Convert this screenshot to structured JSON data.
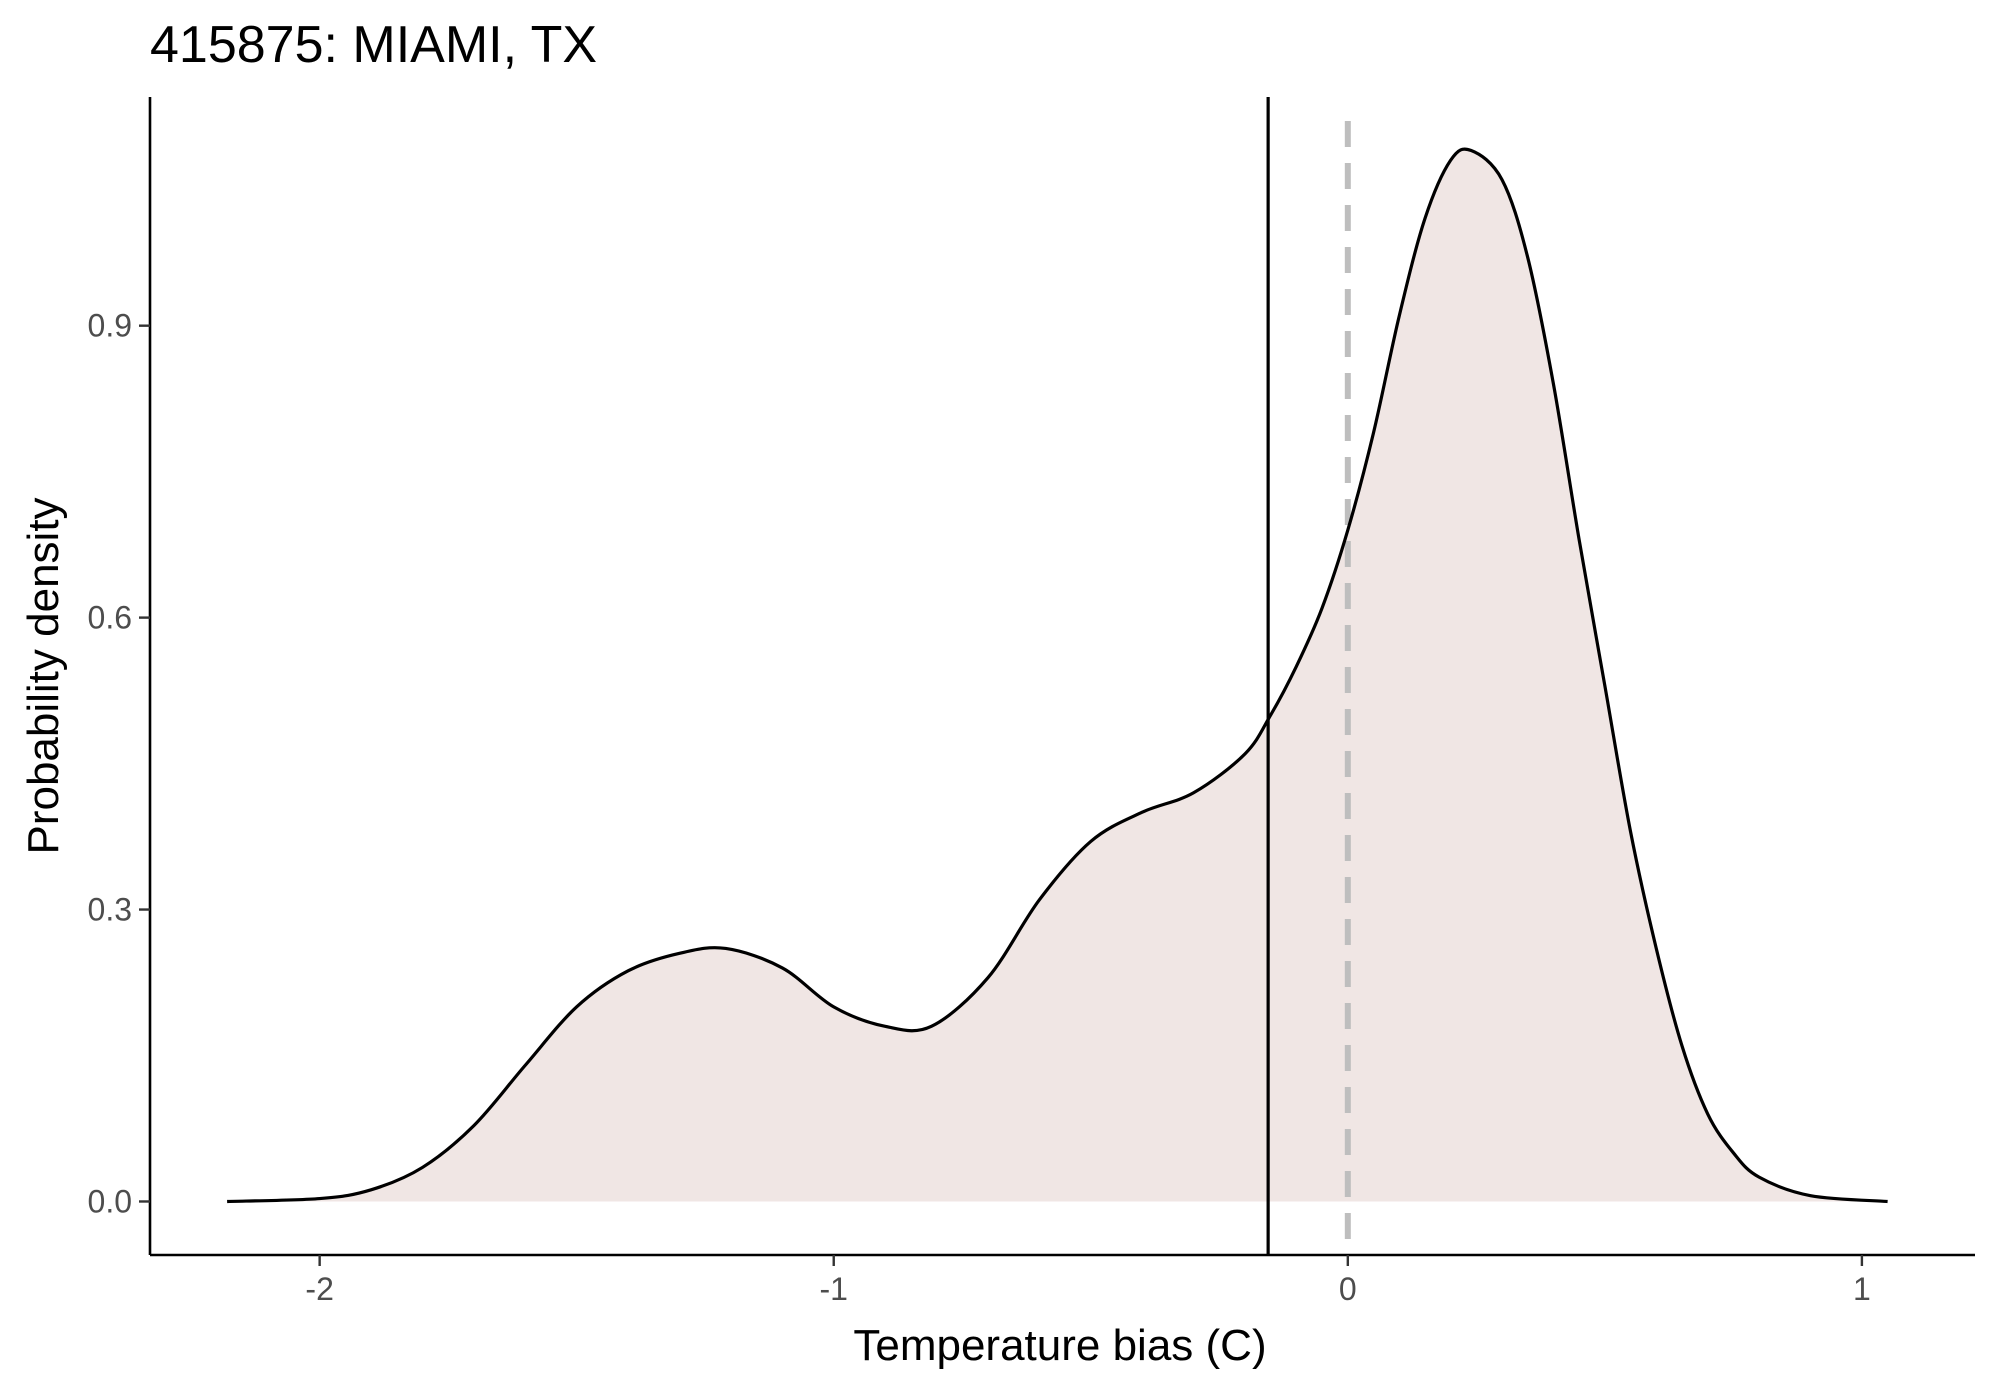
{
  "chart_data": {
    "type": "area",
    "title": "415875: MIAMI, TX",
    "xlabel": "Temperature bias (C)",
    "ylabel": "Probability density",
    "xlim": [
      -2.33,
      1.22
    ],
    "ylim": [
      -0.055,
      1.135
    ],
    "x_ticks": [
      -2,
      -1,
      0,
      1
    ],
    "x_tick_labels": [
      "-2",
      "-1",
      "0",
      "1"
    ],
    "y_ticks": [
      0.0,
      0.3,
      0.6,
      0.9
    ],
    "y_tick_labels": [
      "0.0",
      "0.3",
      "0.6",
      "0.9"
    ],
    "grid": false,
    "legend": "none",
    "fill_color": "#f0e6e4",
    "line_color": "#000000",
    "series": [
      {
        "x": [
          -2.18,
          -2.0,
          -1.9,
          -1.8,
          -1.7,
          -1.6,
          -1.5,
          -1.4,
          -1.3,
          -1.21,
          -1.1,
          -1.0,
          -0.9,
          -0.81,
          -0.7,
          -0.6,
          -0.5,
          -0.4,
          -0.3,
          -0.2,
          -0.15,
          -0.1,
          -0.05,
          0.0,
          0.05,
          0.1,
          0.15,
          0.2,
          0.24,
          0.3,
          0.35,
          0.4,
          0.45,
          0.5,
          0.55,
          0.6,
          0.65,
          0.7,
          0.75,
          0.8,
          0.9,
          1.05
        ],
        "y": [
          0.0,
          0.003,
          0.012,
          0.035,
          0.078,
          0.14,
          0.2,
          0.237,
          0.255,
          0.26,
          0.24,
          0.2,
          0.18,
          0.18,
          0.23,
          0.31,
          0.37,
          0.4,
          0.42,
          0.46,
          0.5,
          0.55,
          0.61,
          0.69,
          0.79,
          0.91,
          1.01,
          1.07,
          1.08,
          1.05,
          0.97,
          0.84,
          0.68,
          0.53,
          0.38,
          0.26,
          0.16,
          0.09,
          0.05,
          0.025,
          0.006,
          0.0
        ]
      }
    ],
    "vertical_lines": [
      {
        "x": -0.155,
        "style": "solid",
        "color": "#000000"
      },
      {
        "x": 0.0,
        "style": "dashed",
        "color": "#bebebe"
      }
    ]
  }
}
